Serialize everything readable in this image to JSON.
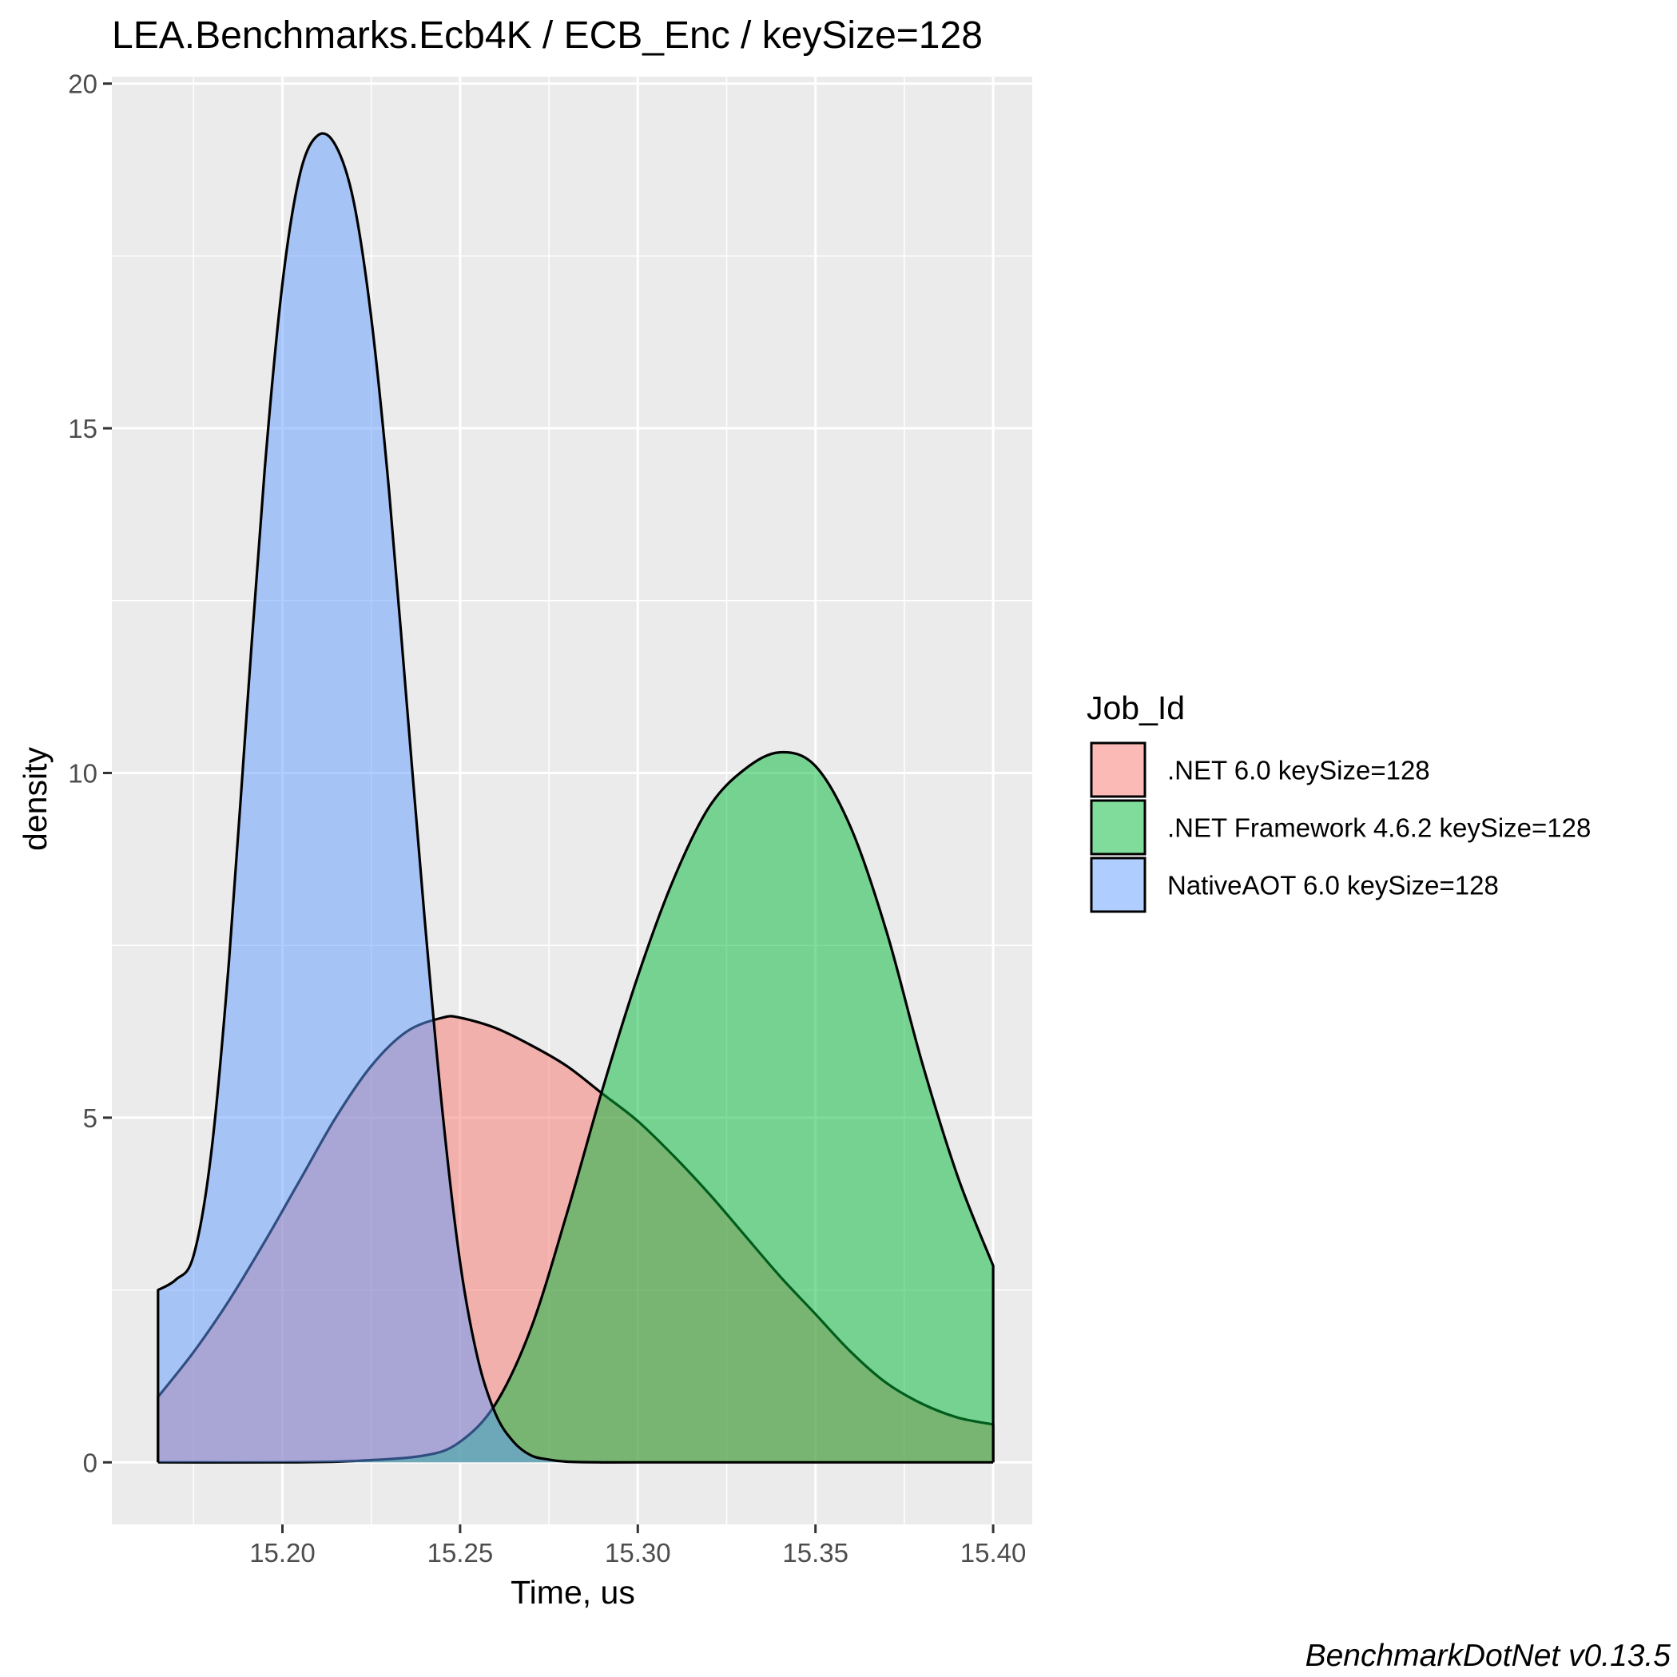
{
  "chart_data": {
    "type": "area",
    "subtype": "density",
    "title": "LEA.Benchmarks.Ecb4K / ECB_Enc / keySize=128",
    "xlabel": "Time, us",
    "ylabel": "density",
    "xlim": [
      15.152,
      15.411
    ],
    "ylim": [
      -0.9,
      20.1
    ],
    "x_ticks": [
      15.2,
      15.25,
      15.3,
      15.35,
      15.4
    ],
    "x_tick_labels": [
      "15.20",
      "15.25",
      "15.30",
      "15.35",
      "15.40"
    ],
    "y_ticks": [
      0,
      5,
      10,
      15,
      20
    ],
    "y_tick_labels": [
      "0",
      "5",
      "10",
      "15",
      "20"
    ],
    "grid": true,
    "legend": {
      "title": "Job_Id",
      "position": "right"
    },
    "series": [
      {
        "name": ".NET 6.0 keySize=128",
        "color": "#F8766D",
        "x": [
          15.165,
          15.175,
          15.185,
          15.195,
          15.205,
          15.215,
          15.225,
          15.235,
          15.245,
          15.25,
          15.26,
          15.27,
          15.28,
          15.29,
          15.3,
          15.31,
          15.32,
          15.33,
          15.34,
          15.35,
          15.36,
          15.37,
          15.38,
          15.39,
          15.4
        ],
        "values": [
          0.95,
          1.6,
          2.35,
          3.2,
          4.1,
          5.0,
          5.75,
          6.25,
          6.45,
          6.45,
          6.3,
          6.05,
          5.75,
          5.35,
          4.95,
          4.45,
          3.9,
          3.3,
          2.7,
          2.15,
          1.6,
          1.15,
          0.85,
          0.65,
          0.55
        ]
      },
      {
        "name": ".NET Framework 4.6.2 keySize=128",
        "color": "#00BA38",
        "x": [
          15.165,
          15.2,
          15.22,
          15.24,
          15.25,
          15.26,
          15.27,
          15.28,
          15.29,
          15.3,
          15.31,
          15.32,
          15.33,
          15.34,
          15.35,
          15.36,
          15.37,
          15.38,
          15.39,
          15.4
        ],
        "values": [
          0.0,
          0.0,
          0.02,
          0.1,
          0.3,
          0.85,
          1.95,
          3.6,
          5.4,
          7.05,
          8.45,
          9.5,
          10.05,
          10.3,
          10.1,
          9.2,
          7.7,
          5.8,
          4.15,
          2.85
        ]
      },
      {
        "name": "NativeAOT 6.0 keySize=128",
        "color": "#619CFF",
        "x": [
          15.165,
          15.17,
          15.175,
          15.18,
          15.185,
          15.19,
          15.195,
          15.2,
          15.205,
          15.21,
          15.215,
          15.22,
          15.225,
          15.23,
          15.235,
          15.24,
          15.245,
          15.25,
          15.255,
          15.26,
          15.265,
          15.27,
          15.275,
          15.28,
          15.29,
          15.3,
          15.4
        ],
        "values": [
          2.5,
          2.65,
          3.0,
          4.5,
          7.3,
          10.9,
          14.4,
          17.1,
          18.7,
          19.25,
          19.1,
          18.3,
          16.6,
          14.1,
          11.0,
          7.9,
          5.1,
          2.9,
          1.5,
          0.7,
          0.3,
          0.1,
          0.04,
          0.01,
          0.0,
          0.0,
          0.0
        ]
      }
    ],
    "caption": "BenchmarkDotNet v0.13.5"
  },
  "colors": {
    "panel_background": "#EBEBEB",
    "grid_line": "#FFFFFF",
    "outline": "#000000"
  }
}
